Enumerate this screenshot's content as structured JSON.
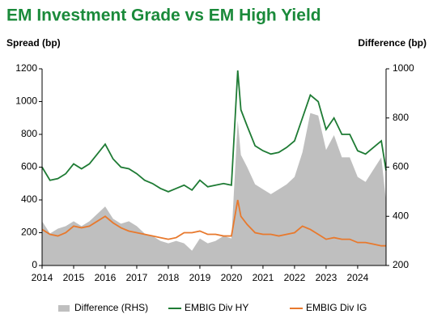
{
  "chart_data": {
    "type": "line",
    "title": "EM Investment Grade vs EM High Yield",
    "y_label": "Spread (bp)",
    "y2_label": "Difference (bp)",
    "x": [
      2014.0,
      2014.25,
      2014.5,
      2014.75,
      2015.0,
      2015.25,
      2015.5,
      2015.75,
      2016.0,
      2016.25,
      2016.5,
      2016.75,
      2017.0,
      2017.25,
      2017.5,
      2017.75,
      2018.0,
      2018.25,
      2018.5,
      2018.75,
      2019.0,
      2019.25,
      2019.5,
      2019.75,
      2020.0,
      2020.2,
      2020.3,
      2020.5,
      2020.75,
      2021.0,
      2021.25,
      2021.5,
      2021.75,
      2022.0,
      2022.25,
      2022.5,
      2022.75,
      2023.0,
      2023.25,
      2023.5,
      2023.75,
      2024.0,
      2024.25,
      2024.5,
      2024.75,
      2024.9
    ],
    "xlim": [
      2014,
      2024.9
    ],
    "xticks": [
      2014,
      2015,
      2016,
      2017,
      2018,
      2019,
      2020,
      2021,
      2022,
      2023,
      2024
    ],
    "ylim": [
      0,
      1200
    ],
    "yticks": [
      0,
      200,
      400,
      600,
      800,
      1000,
      1200
    ],
    "y2lim": [
      200,
      1000
    ],
    "y2ticks": [
      200,
      400,
      600,
      800,
      1000
    ],
    "legend": "bottom",
    "series": [
      {
        "name": "Difference (RHS)",
        "color": "#bfbfbf",
        "kind": "area",
        "axis": "y2",
        "values": [
          380,
          330,
          350,
          360,
          380,
          360,
          380,
          410,
          440,
          390,
          370,
          380,
          360,
          330,
          320,
          300,
          290,
          300,
          290,
          260,
          310,
          290,
          300,
          320,
          310,
          790,
          650,
          600,
          530,
          510,
          490,
          510,
          530,
          560,
          660,
          820,
          810,
          670,
          730,
          640,
          640,
          560,
          540,
          590,
          640,
          460
        ]
      },
      {
        "name": "EMBIG Div HY",
        "color": "#1e7b34",
        "kind": "line",
        "values": [
          600,
          520,
          530,
          560,
          620,
          590,
          620,
          680,
          740,
          650,
          600,
          590,
          560,
          520,
          500,
          470,
          450,
          470,
          490,
          460,
          520,
          480,
          490,
          500,
          490,
          1190,
          950,
          850,
          730,
          700,
          680,
          690,
          720,
          760,
          900,
          1040,
          1000,
          830,
          900,
          800,
          800,
          700,
          680,
          720,
          760,
          580
        ]
      },
      {
        "name": "EMBIG Div IG",
        "color": "#e8792d",
        "kind": "line",
        "values": [
          220,
          190,
          180,
          200,
          240,
          230,
          240,
          270,
          300,
          260,
          230,
          210,
          200,
          190,
          180,
          170,
          160,
          170,
          200,
          200,
          210,
          190,
          190,
          180,
          180,
          400,
          300,
          250,
          200,
          190,
          190,
          180,
          190,
          200,
          240,
          220,
          190,
          160,
          170,
          160,
          160,
          140,
          140,
          130,
          120,
          120
        ]
      }
    ]
  }
}
